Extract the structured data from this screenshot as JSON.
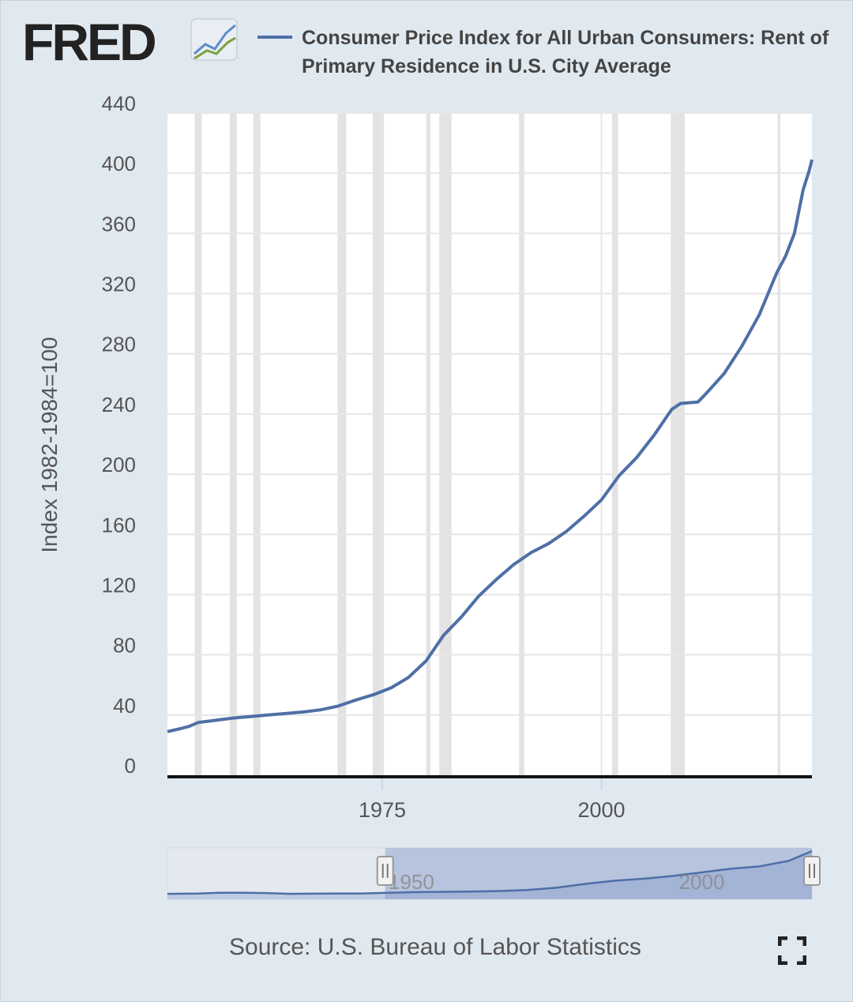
{
  "header": {
    "logo_text": "FRED",
    "legend_label": "Consumer Price Index for All Urban Consumers: Rent of Primary Residence in U.S. City Average"
  },
  "footer": {
    "source": "Source: U.S. Bureau of Labor Statistics"
  },
  "colors": {
    "series": "#4e6fa7",
    "background": "#e1e9f0",
    "plot_background": "#ffffff",
    "recession": "#e3e3e3",
    "navigator_selection": "#a8b7d8"
  },
  "icons": {
    "logo_chart": "trend-lines-icon",
    "fullscreen": "fullscreen-icon",
    "slider_handle": "slider-handle-icon"
  },
  "chart_data": {
    "type": "line",
    "ylabel": "Index 1982-1984=100",
    "xlabel": "",
    "xlim": [
      1950.5,
      2024.0
    ],
    "ylim": [
      0,
      440
    ],
    "x_ticks": [
      1975,
      2000
    ],
    "y_ticks": [
      0,
      40,
      80,
      120,
      160,
      200,
      240,
      280,
      320,
      360,
      400,
      440
    ],
    "grid": true,
    "legend_position": "top",
    "recessions": [
      [
        1953.6,
        1954.4
      ],
      [
        1957.6,
        1958.4
      ],
      [
        1960.3,
        1961.1
      ],
      [
        1969.9,
        1970.9
      ],
      [
        1973.9,
        1975.2
      ],
      [
        1980.0,
        1980.5
      ],
      [
        1981.5,
        1982.9
      ],
      [
        1990.6,
        1991.2
      ],
      [
        2001.2,
        2001.9
      ],
      [
        2007.9,
        2009.5
      ],
      [
        2020.1,
        2020.4
      ]
    ],
    "series": [
      {
        "name": "Consumer Price Index for All Urban Consumers: Rent of Primary Residence in U.S. City Average",
        "x": [
          1950.5,
          1952,
          1953,
          1954,
          1956,
          1958,
          1960,
          1962,
          1964,
          1966,
          1968,
          1970,
          1972,
          1974,
          1976,
          1978,
          1980,
          1982,
          1984,
          1986,
          1988,
          1990,
          1992,
          1994,
          1996,
          1998,
          2000,
          2002,
          2004,
          2006,
          2008,
          2009,
          2010,
          2011,
          2012,
          2014,
          2016,
          2018,
          2019,
          2020,
          2021,
          2022,
          2023,
          2023.7,
          2024.0
        ],
        "values": [
          29,
          31,
          32.5,
          35,
          36.5,
          38,
          39,
          40,
          41,
          42,
          43.5,
          46,
          50,
          53.5,
          58,
          65,
          76,
          93,
          105,
          119,
          130,
          140,
          148,
          154,
          162,
          172,
          183,
          199,
          211,
          226,
          243,
          247,
          247.5,
          248,
          254,
          267,
          285,
          306,
          320,
          334,
          345,
          360,
          389,
          402,
          409
        ]
      }
    ]
  },
  "navigator": {
    "tick_labels": [
      "1950",
      "2000"
    ],
    "series_x": [
      1913,
      1918,
      1922,
      1926,
      1930,
      1934,
      1938,
      1942,
      1946,
      1950,
      1955,
      1960,
      1965,
      1970,
      1975,
      1980,
      1985,
      1990,
      1995,
      2000,
      2005,
      2010,
      2015,
      2020,
      2024
    ],
    "series_values": [
      21,
      23,
      30,
      31,
      28,
      21,
      22,
      23,
      24,
      29,
      36,
      39,
      41,
      46,
      56,
      76,
      111,
      140,
      158,
      183,
      215,
      248,
      270,
      320,
      409
    ],
    "range_start": 1950.5,
    "range_end": 2024.0
  }
}
